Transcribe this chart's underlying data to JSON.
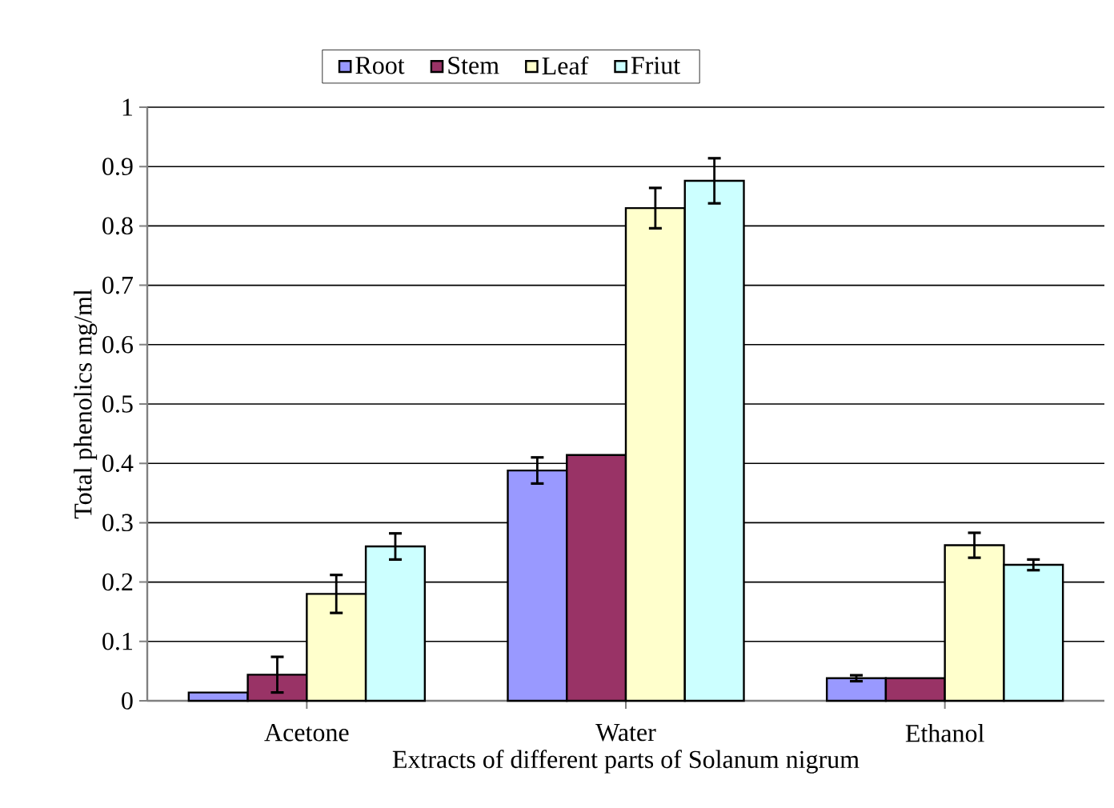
{
  "chart_data": {
    "type": "bar",
    "xlabel": "Extracts of different parts of Solanum nigrum",
    "ylabel": "Total phenolics mg/ml",
    "categories": [
      "Acetone",
      "Water",
      "Ethanol"
    ],
    "series": [
      {
        "name": "Root",
        "color": "#9999ff",
        "values": [
          0.014,
          0.388,
          0.038
        ],
        "errors": [
          null,
          0.022,
          0.005
        ]
      },
      {
        "name": "Stem",
        "color": "#993366",
        "values": [
          0.044,
          0.414,
          0.038
        ],
        "errors": [
          0.03,
          null,
          null
        ]
      },
      {
        "name": "Leaf",
        "color": "#ffffcc",
        "values": [
          0.18,
          0.83,
          0.262
        ],
        "errors": [
          0.032,
          0.034,
          0.021
        ]
      },
      {
        "name": "Friut",
        "color": "#ccffff",
        "values": [
          0.26,
          0.876,
          0.229
        ],
        "errors": [
          0.022,
          0.038,
          0.009
        ]
      }
    ],
    "ylim": [
      0,
      1
    ],
    "yticks": [
      0,
      0.1,
      0.2,
      0.3,
      0.4,
      0.5,
      0.6,
      0.7,
      0.8,
      0.9,
      1
    ],
    "grid": "y",
    "legend": "top"
  }
}
